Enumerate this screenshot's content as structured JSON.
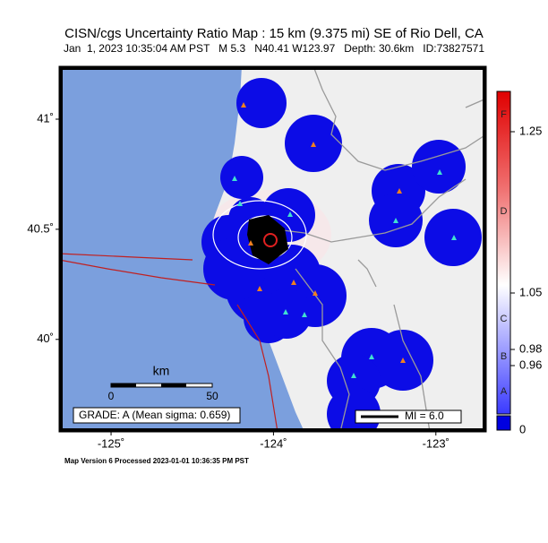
{
  "header": {
    "title": "CISN/cgs Uncertainty Ratio Map : 15 km (9.375 mi) SE of Rio Dell, CA",
    "subtitle": "Jan  1, 2023 10:35:04 AM PST   M 5.3   N40.41 W123.97   Depth: 30.6km   ID:73827571"
  },
  "map": {
    "xlim": [
      -125.32,
      -122.69
    ],
    "ylim": [
      39.58,
      41.24
    ],
    "xticks": [
      {
        "value": -125,
        "label": "-125˚"
      },
      {
        "value": -124,
        "label": "-124˚"
      },
      {
        "value": -123,
        "label": "-123˚"
      }
    ],
    "yticks": [
      {
        "value": 40,
        "label": "40˚"
      },
      {
        "value": 40.5,
        "label": "40.5˚"
      },
      {
        "value": 41,
        "label": "41˚"
      }
    ],
    "scale_bar": {
      "unit": "km",
      "labels": [
        0,
        50
      ]
    },
    "grade_box": "GRADE: A (Mean sigma: 0.659)",
    "legend": "MI = 6.0"
  },
  "colorbar": {
    "lim": [
      0.9,
      1.3
    ],
    "ticks": [
      0.96,
      0.98,
      1.05,
      1.25
    ],
    "grades": [
      "A",
      "B",
      "C",
      "D",
      "F"
    ],
    "floor_label": 0
  },
  "footer": "Map Version 6 Processed 2023-01-01 10:36:35 PM PST"
}
